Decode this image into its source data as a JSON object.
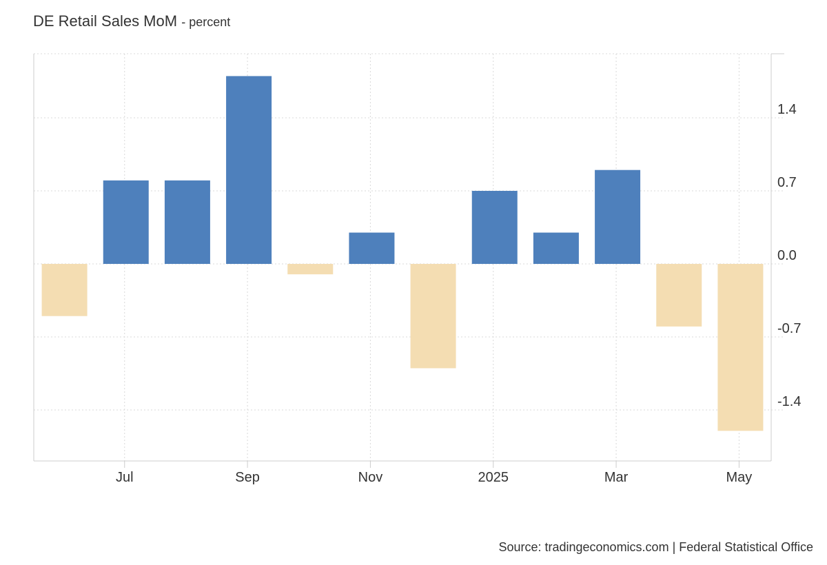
{
  "title": "DE Retail Sales MoM",
  "subtitle": "- percent",
  "source": "Source: tradingeconomics.com | Federal Statistical Office",
  "colors": {
    "positive": "#4e80bc",
    "negative": "#f4ddb2",
    "grid": "#d8d8d8",
    "axis": "#cccccc"
  },
  "chart_data": {
    "type": "bar",
    "categories": [
      "2024-06",
      "2024-07",
      "2024-08",
      "2024-09",
      "2024-10",
      "2024-11",
      "2024-12",
      "2025-01",
      "2025-02",
      "2025-03",
      "2025-04",
      "2025-05"
    ],
    "values": [
      -0.5,
      0.8,
      0.8,
      1.8,
      -0.1,
      0.3,
      -1.0,
      0.7,
      0.3,
      0.9,
      -0.6,
      -1.6
    ],
    "x_tick_labels": [
      {
        "category": "2024-07",
        "label": "Jul"
      },
      {
        "category": "2024-09",
        "label": "Sep"
      },
      {
        "category": "2024-11",
        "label": "Nov"
      },
      {
        "category": "2025-01",
        "label": "2025"
      },
      {
        "category": "2025-03",
        "label": "Mar"
      },
      {
        "category": "2025-05",
        "label": "May"
      }
    ],
    "y_ticks": [
      1.4,
      0.7,
      0.0,
      -0.7,
      -1.4
    ],
    "y_tick_labels": [
      "1.4",
      "0.7",
      "0.0",
      "-0.7",
      "-1.4"
    ],
    "ylim": [
      -1.9,
      2.0
    ],
    "grid": true,
    "y_axis_side": "right",
    "xlabel": "",
    "ylabel": ""
  }
}
